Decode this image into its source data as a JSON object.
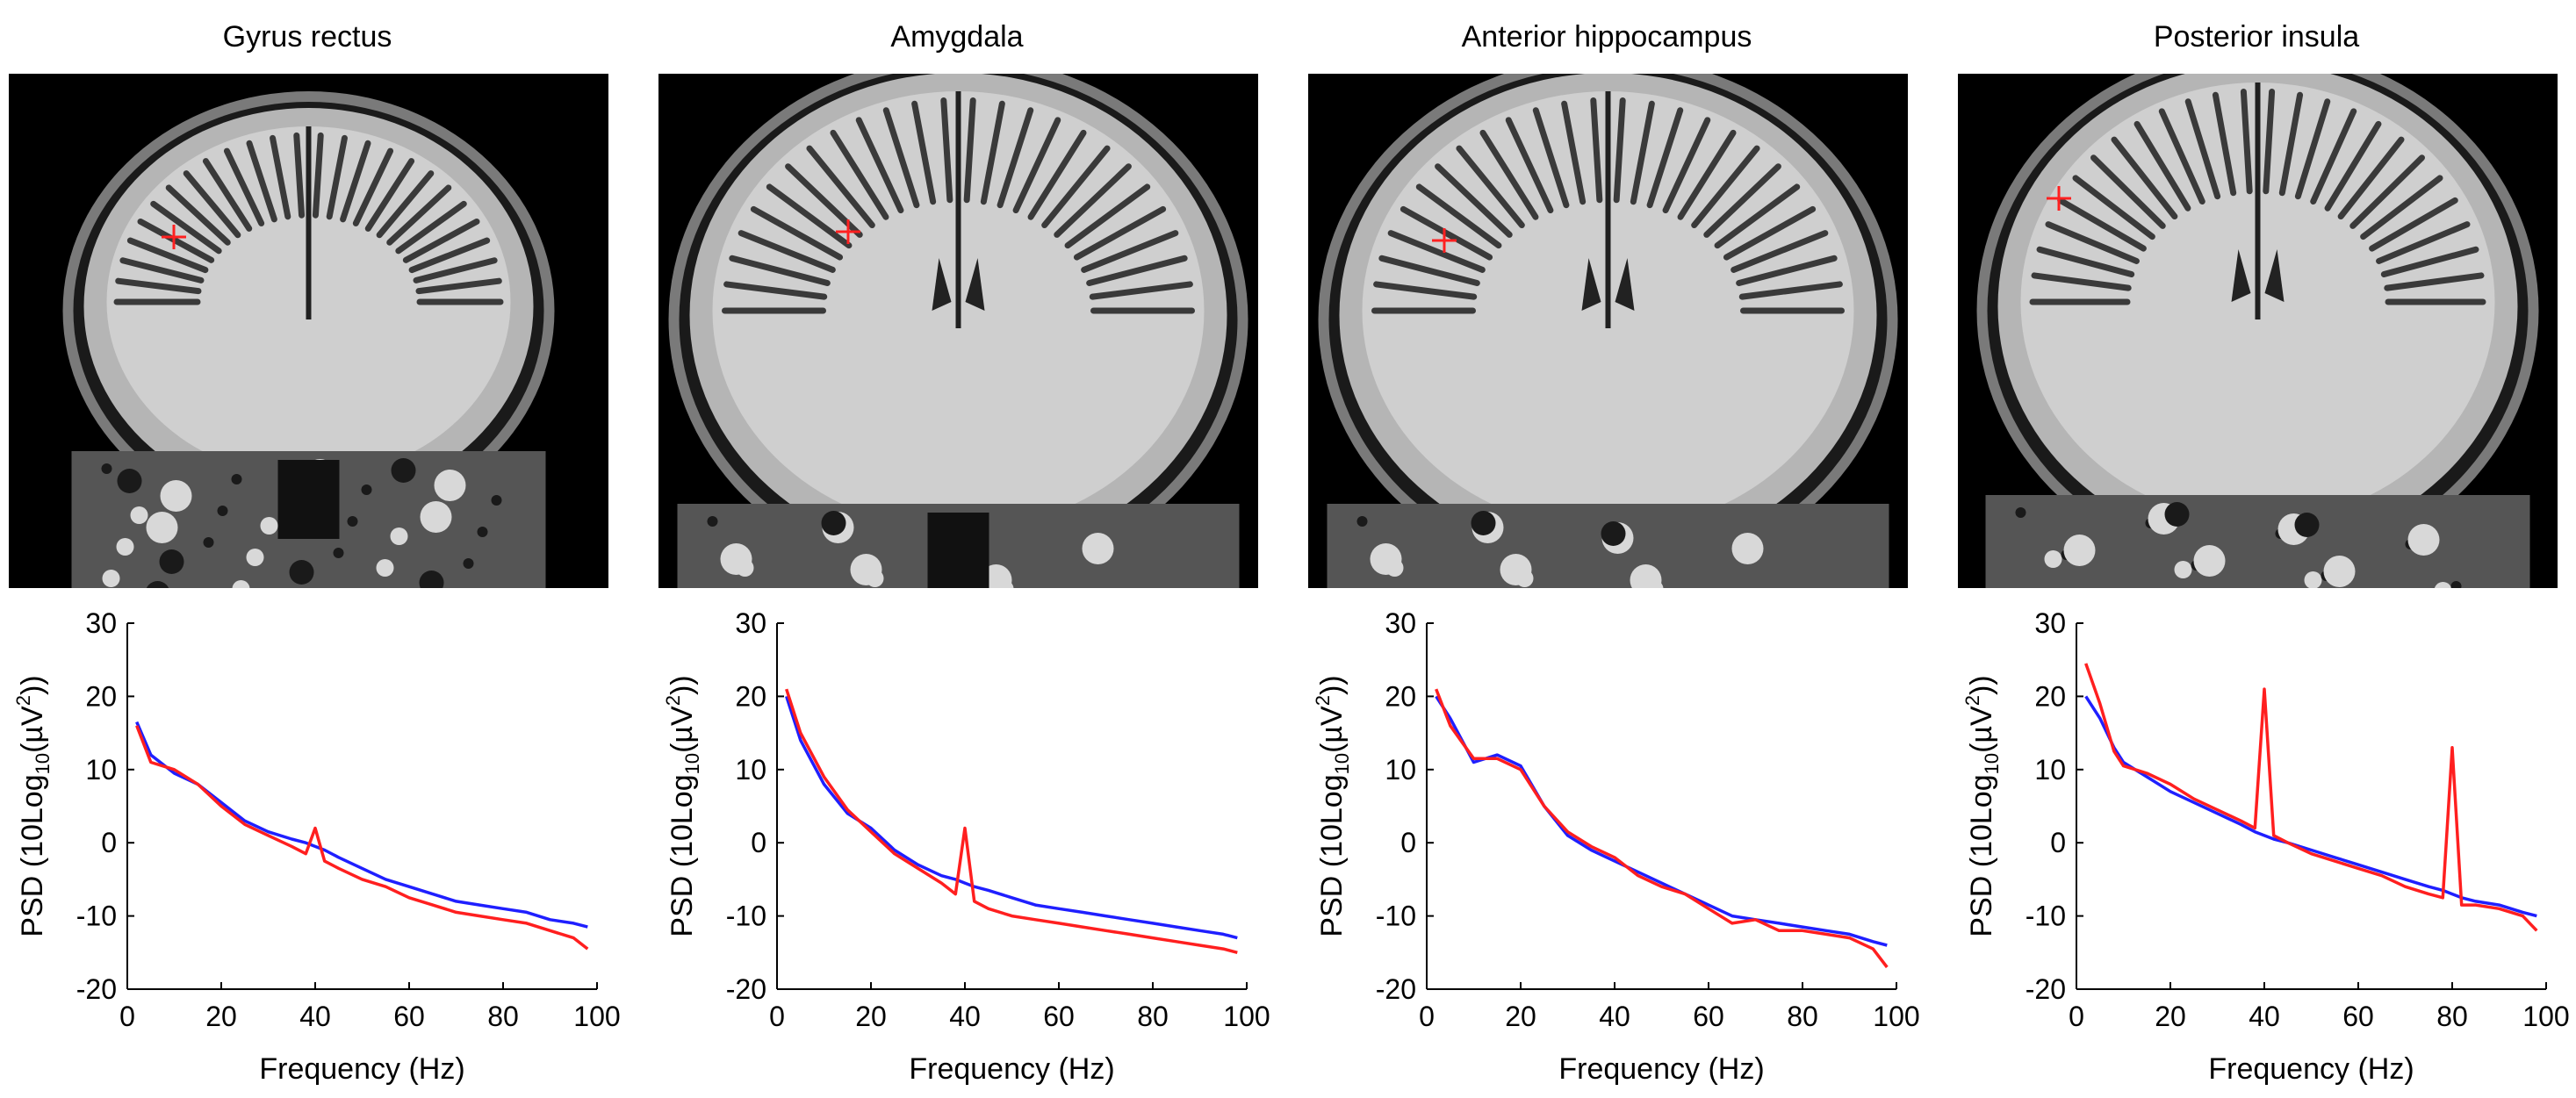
{
  "colors": {
    "series_1": "#1f1fff",
    "series_2": "#ff1f1f",
    "marker": "#ff2020",
    "axis": "#000000"
  },
  "shared_axes": {
    "xlabel": "Frequency (Hz)",
    "ylabel_main": "PSD (10Log",
    "ylabel_sub": "10",
    "ylabel_tail": "(µV",
    "ylabel_sup": "2",
    "ylabel_end": "))"
  },
  "panels": [
    {
      "title": "Gyrus rectus",
      "marker_icon": "red-crosshair-marker"
    },
    {
      "title": "Amygdala",
      "marker_icon": "red-crosshair-marker"
    },
    {
      "title": "Anterior hippocampus",
      "marker_icon": "red-crosshair-marker"
    },
    {
      "title": "Posterior insula",
      "marker_icon": "red-crosshair-marker"
    }
  ],
  "chart_data": [
    {
      "type": "line",
      "title": "Gyrus rectus",
      "xlabel": "Frequency (Hz)",
      "ylabel": "PSD (10Log10(µV2))",
      "xlim": [
        0,
        100
      ],
      "ylim": [
        -20,
        30
      ],
      "xticks": [
        0,
        20,
        40,
        60,
        80,
        100
      ],
      "yticks": [
        -20,
        -10,
        0,
        10,
        20,
        30
      ],
      "grid": false,
      "x": [
        2,
        5,
        10,
        15,
        20,
        25,
        30,
        35,
        38,
        40,
        42,
        45,
        50,
        55,
        60,
        65,
        70,
        75,
        80,
        85,
        90,
        95,
        98
      ],
      "series": [
        {
          "color": "#1f1fff",
          "values": [
            16.5,
            12,
            9.5,
            8,
            5.5,
            3,
            1.5,
            0.5,
            0,
            -0.5,
            -1,
            -2,
            -3.5,
            -5,
            -6,
            -7,
            -8,
            -8.5,
            -9,
            -9.5,
            -10.5,
            -11,
            -11.5
          ]
        },
        {
          "color": "#ff1f1f",
          "values": [
            16,
            11,
            10,
            8,
            5,
            2.5,
            1,
            -0.5,
            -1.5,
            2,
            -2.5,
            -3.5,
            -5,
            -6,
            -7.5,
            -8.5,
            -9.5,
            -10,
            -10.5,
            -11,
            -12,
            -13,
            -14.5
          ]
        }
      ]
    },
    {
      "type": "line",
      "title": "Amygdala",
      "xlabel": "Frequency (Hz)",
      "ylabel": "PSD (10Log10(µV2))",
      "xlim": [
        0,
        100
      ],
      "ylim": [
        -20,
        30
      ],
      "xticks": [
        0,
        20,
        40,
        60,
        80,
        100
      ],
      "yticks": [
        -20,
        -10,
        0,
        10,
        20,
        30
      ],
      "grid": false,
      "x": [
        2,
        5,
        10,
        15,
        20,
        25,
        30,
        35,
        38,
        40,
        42,
        45,
        50,
        55,
        60,
        65,
        70,
        75,
        80,
        85,
        90,
        95,
        98
      ],
      "series": [
        {
          "color": "#1f1fff",
          "values": [
            20,
            14,
            8,
            4,
            2,
            -1,
            -3,
            -4.5,
            -5,
            -5.5,
            -6,
            -6.5,
            -7.5,
            -8.5,
            -9,
            -9.5,
            -10,
            -10.5,
            -11,
            -11.5,
            -12,
            -12.5,
            -13
          ]
        },
        {
          "color": "#ff1f1f",
          "values": [
            21,
            15,
            9,
            4.5,
            1.5,
            -1.5,
            -3.5,
            -5.5,
            -7,
            2,
            -8,
            -9,
            -10,
            -10.5,
            -11,
            -11.5,
            -12,
            -12.5,
            -13,
            -13.5,
            -14,
            -14.5,
            -15
          ]
        }
      ]
    },
    {
      "type": "line",
      "title": "Anterior hippocampus",
      "xlabel": "Frequency (Hz)",
      "ylabel": "PSD (10Log10(µV2))",
      "xlim": [
        0,
        100
      ],
      "ylim": [
        -20,
        30
      ],
      "xticks": [
        0,
        20,
        40,
        60,
        80,
        100
      ],
      "yticks": [
        -20,
        -10,
        0,
        10,
        20,
        30
      ],
      "grid": false,
      "x": [
        2,
        5,
        10,
        15,
        20,
        25,
        30,
        35,
        40,
        45,
        50,
        55,
        60,
        65,
        70,
        75,
        80,
        85,
        90,
        95,
        98
      ],
      "series": [
        {
          "color": "#1f1fff",
          "values": [
            20,
            17,
            11,
            12,
            10.5,
            5,
            1,
            -1,
            -2.5,
            -4,
            -5.5,
            -7,
            -8.5,
            -10,
            -10.5,
            -11,
            -11.5,
            -12,
            -12.5,
            -13.5,
            -14
          ]
        },
        {
          "color": "#ff1f1f",
          "values": [
            21,
            16,
            11.5,
            11.5,
            10,
            5,
            1.5,
            -0.5,
            -2,
            -4.5,
            -6,
            -7,
            -9,
            -11,
            -10.5,
            -12,
            -12,
            -12.5,
            -13,
            -14.5,
            -17
          ]
        }
      ]
    },
    {
      "type": "line",
      "title": "Posterior insula",
      "xlabel": "Frequency (Hz)",
      "ylabel": "PSD (10Log10(µV2))",
      "xlim": [
        0,
        100
      ],
      "ylim": [
        -20,
        30
      ],
      "xticks": [
        0,
        20,
        40,
        60,
        80,
        100
      ],
      "yticks": [
        -20,
        -10,
        0,
        10,
        20,
        30
      ],
      "grid": false,
      "x": [
        2,
        5,
        8,
        10,
        15,
        20,
        25,
        30,
        35,
        38,
        40,
        42,
        45,
        50,
        55,
        60,
        65,
        70,
        75,
        78,
        80,
        82,
        85,
        90,
        95,
        98
      ],
      "series": [
        {
          "color": "#1f1fff",
          "values": [
            20,
            17,
            13,
            11,
            9,
            7,
            5.5,
            4,
            2.5,
            1.5,
            1,
            0.5,
            0,
            -1,
            -2,
            -3,
            -4,
            -5,
            -6,
            -6.5,
            -7,
            -7.5,
            -8,
            -8.5,
            -9.5,
            -10
          ]
        },
        {
          "color": "#ff1f1f",
          "values": [
            24.5,
            19,
            12.5,
            10.5,
            9.5,
            8,
            6,
            4.5,
            3,
            2,
            21,
            1,
            0,
            -1.5,
            -2.5,
            -3.5,
            -4.5,
            -6,
            -7,
            -7.5,
            13,
            -8.5,
            -8.5,
            -9,
            -10,
            -12
          ]
        }
      ]
    }
  ]
}
